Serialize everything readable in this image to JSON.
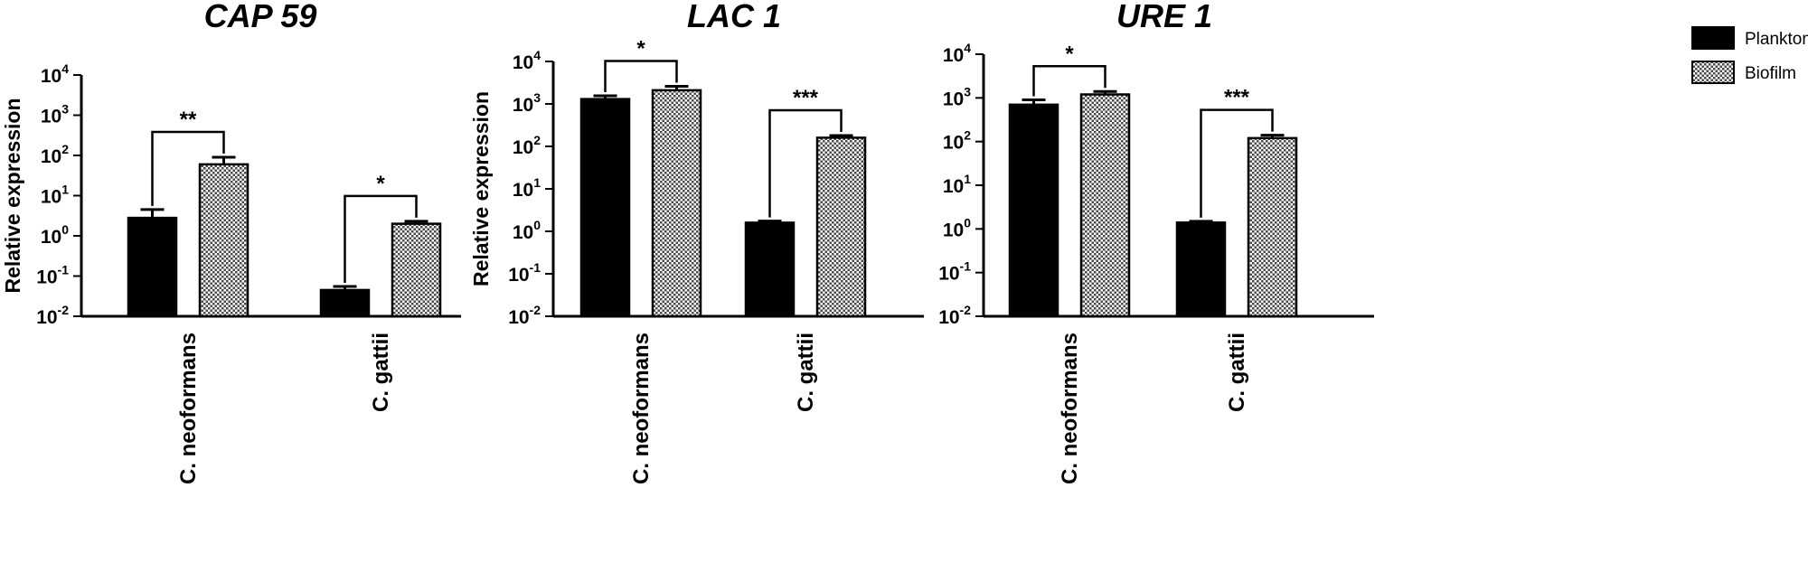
{
  "chart_data": [
    {
      "type": "bar",
      "title": "CAP 59",
      "ylabel": "Relative expression",
      "yscale": "log",
      "ylim": [
        0.01,
        10000
      ],
      "yticks": [
        {
          "base": "10",
          "exp": "-2"
        },
        {
          "base": "10",
          "exp": "-1"
        },
        {
          "base": "10",
          "exp": "0"
        },
        {
          "base": "10",
          "exp": "1"
        },
        {
          "base": "10",
          "exp": "2"
        },
        {
          "base": "10",
          "exp": "3"
        },
        {
          "base": "10",
          "exp": "4"
        }
      ],
      "categories": [
        "C. neoformans",
        "C. gattii"
      ],
      "series": [
        {
          "name": "Planktonic",
          "values": [
            2.8,
            0.045
          ],
          "errors_upper": [
            4.5,
            0.055
          ],
          "fill": "solid"
        },
        {
          "name": "Biofilm",
          "values": [
            60,
            2.0
          ],
          "errors_upper": [
            90,
            2.3
          ],
          "fill": "checkered"
        }
      ],
      "significance": [
        "**",
        "*"
      ]
    },
    {
      "type": "bar",
      "title": "LAC 1",
      "ylabel": "Relative expression",
      "yscale": "log",
      "ylim": [
        0.01,
        10000
      ],
      "yticks": [
        {
          "base": "10",
          "exp": "-2"
        },
        {
          "base": "10",
          "exp": "-1"
        },
        {
          "base": "10",
          "exp": "0"
        },
        {
          "base": "10",
          "exp": "1"
        },
        {
          "base": "10",
          "exp": "2"
        },
        {
          "base": "10",
          "exp": "3"
        },
        {
          "base": "10",
          "exp": "4"
        }
      ],
      "categories": [
        "C. neoformans",
        "C. gattii"
      ],
      "series": [
        {
          "name": "Planktonic",
          "values": [
            1300,
            1.6
          ],
          "errors_upper": [
            1550,
            1.75
          ],
          "fill": "solid"
        },
        {
          "name": "Biofilm",
          "values": [
            2100,
            160
          ],
          "errors_upper": [
            2600,
            180
          ],
          "fill": "checkered"
        }
      ],
      "significance": [
        "*",
        "***"
      ]
    },
    {
      "type": "bar",
      "title": "URE 1",
      "ylabel": "",
      "yscale": "log",
      "ylim": [
        0.01,
        10000
      ],
      "yticks": [
        {
          "base": "10",
          "exp": "-2"
        },
        {
          "base": "10",
          "exp": "-1"
        },
        {
          "base": "10",
          "exp": "0"
        },
        {
          "base": "10",
          "exp": "1"
        },
        {
          "base": "10",
          "exp": "2"
        },
        {
          "base": "10",
          "exp": "3"
        },
        {
          "base": "10",
          "exp": "4"
        }
      ],
      "categories": [
        "C. neoformans",
        "C. gattii"
      ],
      "series": [
        {
          "name": "Planktonic",
          "values": [
            700,
            1.4
          ],
          "errors_upper": [
            900,
            1.5
          ],
          "fill": "solid"
        },
        {
          "name": "Biofilm",
          "values": [
            1200,
            120
          ],
          "errors_upper": [
            1400,
            140
          ],
          "fill": "checkered"
        }
      ],
      "significance": [
        "*",
        "***"
      ],
      "legend": {
        "position": "top-right",
        "entries": [
          "Planktonic",
          "Biofilm"
        ]
      }
    }
  ]
}
